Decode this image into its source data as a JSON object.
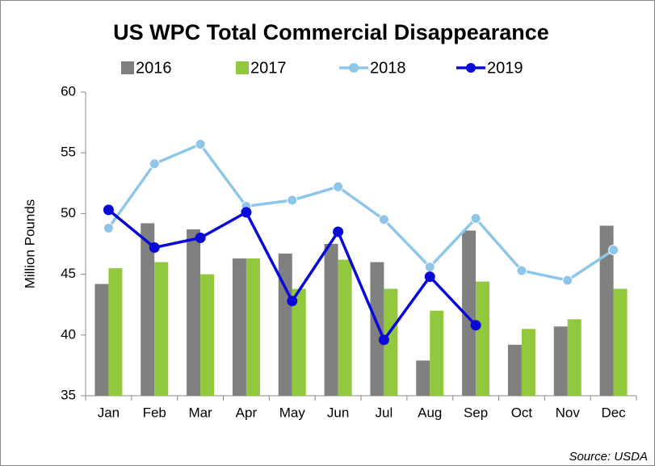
{
  "chart_data": {
    "type": "bar-line",
    "title": "US WPC Total Commercial Disappearance",
    "y_label": "Million Pounds",
    "annotation": "Source: USDA",
    "categories": [
      "Jan",
      "Feb",
      "Mar",
      "Apr",
      "May",
      "Jun",
      "Jul",
      "Aug",
      "Sep",
      "Oct",
      "Nov",
      "Dec"
    ],
    "series": [
      {
        "name": "2016",
        "type": "bar",
        "color": "#808080",
        "values": [
          44.2,
          49.2,
          48.7,
          46.3,
          46.7,
          47.5,
          46.0,
          37.9,
          48.6,
          39.2,
          40.7,
          49.0
        ]
      },
      {
        "name": "2017",
        "type": "bar",
        "color": "#92c83e",
        "values": [
          45.5,
          46.0,
          45.0,
          46.3,
          43.8,
          46.2,
          43.8,
          42.0,
          44.4,
          40.5,
          41.3,
          43.8
        ]
      },
      {
        "name": "2018",
        "type": "line",
        "color": "#8ec6ea",
        "values": [
          48.8,
          54.1,
          55.7,
          50.6,
          51.1,
          52.2,
          49.5,
          45.6,
          49.6,
          45.3,
          44.5,
          47.0
        ]
      },
      {
        "name": "2019",
        "type": "line",
        "color": "#0a0ad8",
        "values": [
          50.3,
          47.2,
          48.0,
          50.1,
          42.8,
          48.5,
          39.6,
          44.8,
          40.8,
          null,
          null,
          null
        ]
      }
    ],
    "ylim": [
      35,
      60
    ],
    "yticks": [
      35,
      40,
      45,
      50,
      55,
      60
    ],
    "grid": false,
    "legend": "top"
  }
}
